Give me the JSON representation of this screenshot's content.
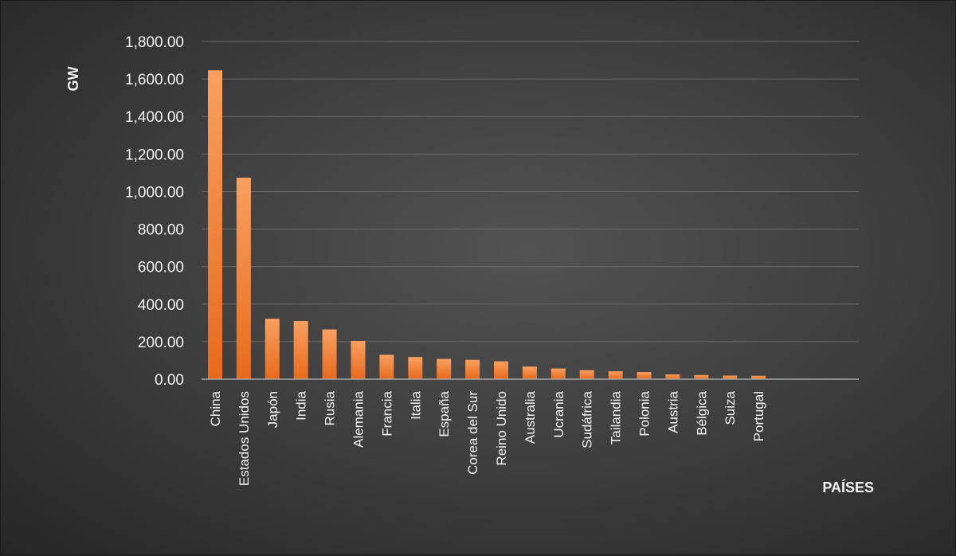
{
  "chart_data": {
    "type": "bar",
    "title": "",
    "ylabel": "GW",
    "xlabel": "PAÍSES",
    "ylim": [
      0,
      1800
    ],
    "yticks": [
      0,
      200,
      400,
      600,
      800,
      1000,
      1200,
      1400,
      1600,
      1800
    ],
    "ytick_labels": [
      "0.00",
      "200.00",
      "400.00",
      "600.00",
      "800.00",
      "1,000.00",
      "1,200.00",
      "1,400.00",
      "1,600.00",
      "1,800.00"
    ],
    "grid": true,
    "categories": [
      "China",
      "Estados Unidos",
      "Japón",
      "India",
      "Rusia",
      "Alemania",
      "Francia",
      "Italia",
      "España",
      "Corea del Sur",
      "Reino Unido",
      "Australia",
      "Ucrania",
      "Sudáfrica",
      "Tailandia",
      "Polonia",
      "Austria",
      "Bélgica",
      "Suiza",
      "Portugal"
    ],
    "values": [
      1646,
      1074,
      322,
      310,
      265,
      204,
      130,
      118,
      108,
      103,
      95,
      67,
      57,
      48,
      42,
      38,
      25,
      22,
      19,
      18
    ],
    "colors": {
      "bar_top": "#f8a060",
      "bar_bottom": "#e86a1c",
      "grid": "#6a6a6a",
      "axis": "#a8a8a8",
      "text": "#f2f2f2"
    }
  }
}
